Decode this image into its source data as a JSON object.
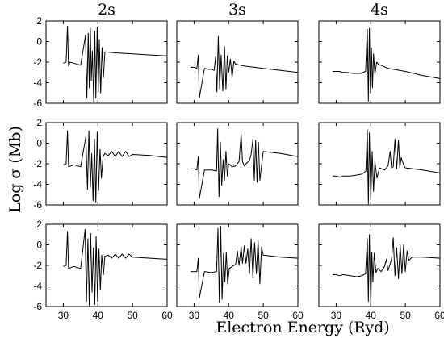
{
  "chart_data": {
    "type": "line",
    "rows": 3,
    "columns": [
      "2s",
      "3s",
      "4s"
    ],
    "ylabel": "Log σ (Mb)",
    "xlabel": "Electron Energy (Ryd)",
    "xlim": [
      25,
      60
    ],
    "ylim": [
      -6,
      2
    ],
    "x_ticks": [
      30,
      40,
      50,
      60
    ],
    "y_ticks": [
      -6,
      -4,
      -2,
      0,
      2
    ],
    "grid": false,
    "legend": "none",
    "line_color": "#000000",
    "panels": [
      {
        "row": 0,
        "column": "2s",
        "x": [
          30,
          30.8,
          31.2,
          31.5,
          31.9,
          33,
          35,
          36.4,
          36.8,
          37.2,
          37.5,
          37.8,
          38.1,
          38.4,
          38.8,
          39.1,
          39.4,
          39.8,
          40.1,
          40.4,
          40.8,
          41.2,
          41.6,
          42,
          45,
          50,
          55,
          60
        ],
        "y": [
          -2.1,
          -2,
          1.5,
          -2.4,
          -2,
          -2.1,
          -2.3,
          0.6,
          -5.5,
          0.8,
          -4.5,
          1.3,
          -3.8,
          -0.9,
          -5.9,
          1,
          -5.5,
          1.4,
          -4.9,
          0.2,
          -5,
          -0.6,
          -3.5,
          -1,
          -1.1,
          -1.2,
          -1.3,
          -1.4
        ]
      },
      {
        "row": 0,
        "column": "3s",
        "x": [
          29,
          30,
          30.8,
          31.2,
          31.5,
          33,
          34,
          35,
          35.8,
          36.2,
          36.6,
          37,
          37.4,
          37.8,
          38.3,
          38.8,
          39.2,
          39.6,
          40,
          40.5,
          41,
          41.5,
          42,
          45,
          50,
          55,
          60
        ],
        "y": [
          -2.5,
          -2.5,
          -2.6,
          -1.3,
          -5.5,
          -2.6,
          -2.7,
          -2.7,
          -2.8,
          -1.5,
          -4.9,
          0.5,
          -4.6,
          -1.3,
          -4.8,
          -0.5,
          -4.6,
          -1.4,
          -3,
          -1.7,
          -3.5,
          -1.9,
          -2.2,
          -2.4,
          -2.6,
          -2.8,
          -3
        ]
      },
      {
        "row": 0,
        "column": "4s",
        "x": [
          29,
          30,
          31,
          32,
          33,
          35,
          37,
          38.5,
          39,
          39.3,
          39.6,
          39.9,
          40.2,
          40.5,
          40.8,
          41.2,
          41.7,
          42.2,
          45,
          50,
          55,
          60
        ],
        "y": [
          -2.9,
          -2.9,
          -2.9,
          -3,
          -3,
          -3.1,
          -3.1,
          -2.9,
          1.2,
          -5.8,
          1.3,
          -5,
          -0.6,
          -4.5,
          -1.2,
          -3.2,
          -2,
          -2.2,
          -2.6,
          -2.9,
          -3.3,
          -3.6
        ]
      },
      {
        "row": 1,
        "column": "2s",
        "x": [
          30,
          30.8,
          31.2,
          31.5,
          33,
          35,
          36.5,
          37,
          37.4,
          37.8,
          38.2,
          38.6,
          39,
          39.4,
          39.8,
          40.2,
          40.6,
          41,
          41.5,
          42,
          43,
          44,
          45,
          46,
          47,
          48,
          49,
          50,
          55,
          60
        ],
        "y": [
          -2.1,
          -2,
          1.2,
          -2.3,
          -2.1,
          -2.3,
          0.6,
          -4.5,
          1.2,
          -4.3,
          -1,
          -5.6,
          0.4,
          -5.8,
          1.1,
          -4.6,
          -0.6,
          -3.4,
          -1.3,
          -1,
          -1.2,
          -0.8,
          -1.3,
          -0.8,
          -1.3,
          -0.8,
          -1.3,
          -1.1,
          -1.2,
          -1.4
        ]
      },
      {
        "row": 1,
        "column": "3s",
        "x": [
          29,
          30,
          30.8,
          31.2,
          31.5,
          33,
          35,
          36.5,
          36.8,
          37.2,
          37.6,
          38,
          38.4,
          38.8,
          39.2,
          39.6,
          40,
          41,
          42,
          43,
          43.6,
          44,
          44.5,
          45,
          46,
          46.5,
          47,
          47.4,
          47.8,
          48.2,
          48.6,
          49,
          50,
          55,
          60
        ],
        "y": [
          -2.5,
          -2.5,
          -2.6,
          -1.3,
          -5.4,
          -2.6,
          -2.6,
          -2.7,
          1.4,
          -5.2,
          0.1,
          -4.1,
          -1.6,
          -3.6,
          -0.8,
          -3.2,
          -2,
          -2.3,
          -2.2,
          -1.8,
          0.9,
          -1.8,
          -2.2,
          -2,
          -1.7,
          -1.1,
          0.4,
          -3.6,
          0.3,
          -3.8,
          0.1,
          -3.6,
          -0.8,
          -1,
          -1.3
        ]
      },
      {
        "row": 1,
        "column": "4s",
        "x": [
          29,
          30,
          31,
          32,
          34,
          36,
          37.5,
          38.6,
          39,
          39.3,
          39.6,
          40,
          40.4,
          40.8,
          41.2,
          41.8,
          42.5,
          44,
          45,
          45.6,
          46,
          46.5,
          47,
          47.5,
          48,
          48.4,
          48.8,
          49.5,
          50,
          55,
          60
        ],
        "y": [
          -3.2,
          -3.2,
          -3.3,
          -3.2,
          -3.2,
          -3.1,
          -3,
          -2.7,
          1.3,
          -5.9,
          1,
          -5.5,
          -0.8,
          -4.7,
          -1.8,
          -3.4,
          -2.4,
          -2.6,
          -2.2,
          -0.8,
          -2.4,
          -2.3,
          0.4,
          -2.5,
          0.3,
          -2.4,
          -1.4,
          -2.1,
          -2.4,
          -2.6,
          -2.9
        ]
      },
      {
        "row": 2,
        "column": "2s",
        "x": [
          30,
          30.8,
          31.2,
          31.5,
          33,
          35,
          36.3,
          36.7,
          37.1,
          37.5,
          37.9,
          38.3,
          38.7,
          39.1,
          39.5,
          39.9,
          40.3,
          40.7,
          41.1,
          41.6,
          42,
          43,
          44,
          45,
          46,
          47,
          48,
          49,
          50,
          55,
          60
        ],
        "y": [
          -2.1,
          -2,
          1.3,
          -2.3,
          -2.1,
          -2.3,
          1.5,
          -5.5,
          0.6,
          -5.9,
          1.1,
          -4.6,
          -0.3,
          -5.8,
          0.8,
          -5.5,
          -0.4,
          -4.4,
          -1,
          -2.9,
          -1.1,
          -1,
          -1.3,
          -0.9,
          -1.3,
          -0.9,
          -1.3,
          -0.9,
          -1.2,
          -1.3,
          -1.4
        ]
      },
      {
        "row": 2,
        "column": "3s",
        "x": [
          29,
          30,
          30.8,
          31.2,
          31.5,
          33,
          35,
          36.5,
          36.9,
          37.3,
          37.7,
          38.1,
          38.5,
          38.9,
          39.3,
          39.7,
          40.2,
          41,
          42,
          42.5,
          43,
          43.6,
          44,
          44.5,
          45,
          45.5,
          46,
          46.5,
          47,
          47.5,
          48,
          48.5,
          49,
          49.5,
          50,
          55,
          60
        ],
        "y": [
          -2.6,
          -2.6,
          -2.6,
          -1.3,
          -5.2,
          -2.6,
          -2.7,
          -2.6,
          1.6,
          -5.6,
          1.8,
          -5.3,
          -0.8,
          -3.6,
          -0.7,
          -3.8,
          -2.3,
          -2.1,
          -1.9,
          -0.6,
          -2,
          -0.2,
          -1.8,
          -0.1,
          -1.8,
          -0.4,
          -2.8,
          0.6,
          -3.2,
          0.2,
          -2.8,
          0.4,
          -3.8,
          -0.2,
          -1,
          -1.2,
          -1.3
        ]
      },
      {
        "row": 2,
        "column": "4s",
        "x": [
          29,
          30,
          31,
          32,
          34,
          36,
          37.5,
          38.5,
          39,
          39.3,
          39.6,
          40,
          40.3,
          40.6,
          41,
          41.5,
          42,
          43,
          44,
          44.5,
          45,
          46,
          46.5,
          47,
          47.5,
          48,
          48.5,
          49,
          49.5,
          50,
          50.5,
          51,
          52,
          55,
          60
        ],
        "y": [
          -2.9,
          -2.9,
          -3,
          -2.9,
          -3,
          -3.1,
          -3,
          -2.8,
          0.6,
          -5.5,
          1,
          -5.9,
          -0.7,
          -3.6,
          -0.8,
          -2.7,
          -2.3,
          -2.6,
          -2.1,
          -1.4,
          -2.5,
          -1.4,
          0.7,
          -3,
          -0.3,
          -3.3,
          0,
          -2.8,
          0,
          -2.6,
          -0.6,
          -1.5,
          -1.2,
          -1.2,
          -1.3
        ]
      }
    ]
  }
}
